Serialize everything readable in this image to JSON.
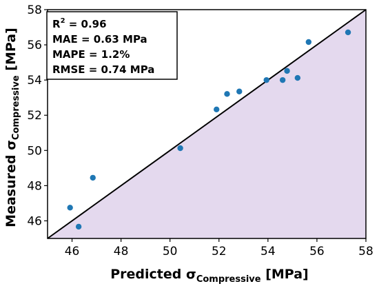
{
  "chart_data": {
    "type": "scatter",
    "xlabel": {
      "prefix": "Predicted ",
      "symbol": "σ",
      "subscript": "Compressive",
      "suffix": " [MPa]"
    },
    "ylabel": {
      "prefix": "Measured ",
      "symbol": "σ",
      "subscript": "Compressive",
      "suffix": " [MPa]"
    },
    "xlim": [
      45,
      58
    ],
    "ylim": [
      45,
      58
    ],
    "x_ticks": [
      46,
      48,
      50,
      52,
      54,
      56,
      58
    ],
    "y_ticks": [
      46,
      48,
      50,
      52,
      54,
      56,
      58
    ],
    "grid": false,
    "reference_line": {
      "type": "identity",
      "from": [
        45,
        45
      ],
      "to": [
        58,
        58
      ],
      "color": "#000000",
      "shaded_region": "below",
      "shade_color": "#e4d9ee"
    },
    "marker_color": "#1f77b4",
    "points": [
      {
        "x": 45.92,
        "y": 46.75
      },
      {
        "x": 46.27,
        "y": 45.67
      },
      {
        "x": 46.85,
        "y": 48.45
      },
      {
        "x": 50.42,
        "y": 50.13
      },
      {
        "x": 51.9,
        "y": 52.33
      },
      {
        "x": 52.33,
        "y": 53.21
      },
      {
        "x": 52.83,
        "y": 53.35
      },
      {
        "x": 53.94,
        "y": 54.0
      },
      {
        "x": 54.6,
        "y": 54.0
      },
      {
        "x": 54.78,
        "y": 54.52
      },
      {
        "x": 55.21,
        "y": 54.12
      },
      {
        "x": 55.66,
        "y": 56.16
      },
      {
        "x": 57.27,
        "y": 56.71
      }
    ],
    "annotation": {
      "lines": [
        {
          "text": "R",
          "sup": "2",
          "rest": " = 0.96"
        },
        {
          "text": "MAE = 0.63 MPa"
        },
        {
          "text": "MAPE = 1.2%"
        },
        {
          "text": "RMSE = 0.74 MPa"
        }
      ],
      "placement": "top-left"
    }
  }
}
